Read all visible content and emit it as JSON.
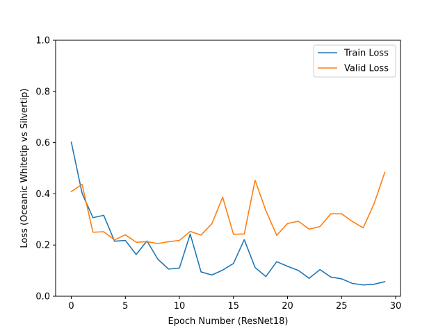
{
  "chart_data": {
    "type": "line",
    "title": "",
    "xlabel": "Epoch Number (ResNet18)",
    "ylabel": "Loss (Oceanic Whitetip vs Silvertip)",
    "xlim": [
      -1.45,
      30.45
    ],
    "ylim": [
      0.0,
      1.0
    ],
    "xticks": [
      0,
      5,
      10,
      15,
      20,
      25,
      30
    ],
    "yticks": [
      0.0,
      0.2,
      0.4,
      0.6,
      0.8,
      1.0
    ],
    "xtick_labels": [
      "0",
      "5",
      "10",
      "15",
      "20",
      "25",
      "30"
    ],
    "ytick_labels": [
      "0.0",
      "0.2",
      "0.4",
      "0.6",
      "0.8",
      "1.0"
    ],
    "grid": false,
    "legend_position": "top-right",
    "x": [
      0,
      1,
      2,
      3,
      4,
      5,
      6,
      7,
      8,
      9,
      10,
      11,
      12,
      13,
      14,
      15,
      16,
      17,
      18,
      19,
      20,
      21,
      22,
      23,
      24,
      25,
      26,
      27,
      28,
      29
    ],
    "series": [
      {
        "name": "Train Loss",
        "color": "#1f77b4",
        "values": [
          0.602,
          0.402,
          0.307,
          0.316,
          0.215,
          0.218,
          0.163,
          0.216,
          0.145,
          0.106,
          0.11,
          0.243,
          0.095,
          0.083,
          0.102,
          0.128,
          0.221,
          0.112,
          0.077,
          0.135,
          0.117,
          0.101,
          0.07,
          0.104,
          0.075,
          0.068,
          0.05,
          0.044,
          0.047,
          0.057
        ]
      },
      {
        "name": "Valid Loss",
        "color": "#ff7f0e",
        "values": [
          0.409,
          0.437,
          0.25,
          0.252,
          0.22,
          0.24,
          0.211,
          0.213,
          0.206,
          0.213,
          0.218,
          0.253,
          0.239,
          0.283,
          0.387,
          0.242,
          0.243,
          0.453,
          0.334,
          0.238,
          0.284,
          0.293,
          0.262,
          0.272,
          0.322,
          0.322,
          0.292,
          0.267,
          0.361,
          0.484
        ]
      }
    ]
  }
}
